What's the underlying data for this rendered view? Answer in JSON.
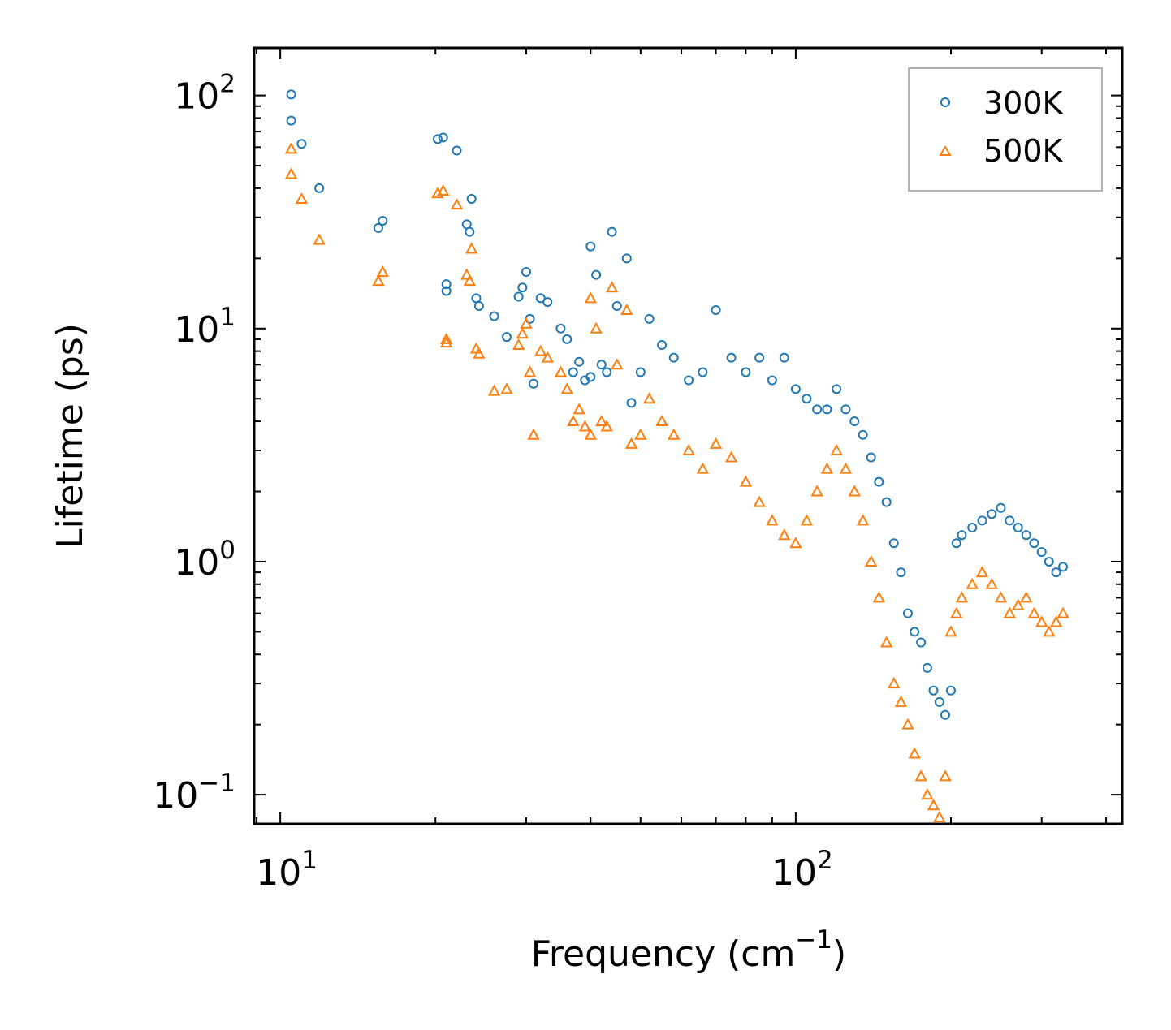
{
  "chart_data": {
    "type": "scatter",
    "title": "",
    "xlabel": "Frequency (cm",
    "xlabel_sup": "−1",
    "xlabel_close": ")",
    "ylabel": "Lifetime (ps)",
    "xscale": "log",
    "yscale": "log",
    "xlim": [
      8.9,
      430
    ],
    "ylim": [
      0.075,
      160
    ],
    "x_ticks": [
      {
        "value": 10,
        "base": "10",
        "exp": "1"
      },
      {
        "value": 100,
        "base": "10",
        "exp": "2"
      }
    ],
    "y_ticks": [
      {
        "value": 0.1,
        "base": "10",
        "exp": "−1"
      },
      {
        "value": 1,
        "base": "10",
        "exp": "0"
      },
      {
        "value": 10,
        "base": "10",
        "exp": "1"
      },
      {
        "value": 100,
        "base": "10",
        "exp": "2"
      }
    ],
    "legend_position": "upper-right",
    "series": [
      {
        "name": "300K",
        "marker": "circle",
        "color": "#1f77b4",
        "x": [
          10.5,
          10.5,
          11.0,
          11.9,
          15.5,
          15.8,
          20.2,
          20.7,
          21.0,
          21.0,
          22.0,
          23.0,
          23.3,
          23.5,
          24.0,
          24.3,
          26.0,
          27.5,
          29.0,
          29.5,
          30.0,
          30.5,
          31.0,
          32.0,
          33.0,
          35.0,
          36.0,
          37.0,
          38.0,
          39.0,
          40.0,
          40.0,
          41.0,
          42.0,
          43.0,
          44.0,
          45.0,
          47.0,
          48.0,
          50.0,
          52.0,
          55.0,
          58.0,
          62.0,
          66.0,
          70.0,
          75.0,
          80.0,
          85.0,
          90.0,
          95.0,
          100.0,
          105.0,
          110.0,
          115.0,
          120.0,
          125.0,
          130.0,
          135.0,
          140.0,
          145.0,
          150.0,
          155.0,
          160.0,
          165.0,
          170.0,
          175.0,
          180.0,
          185.0,
          190.0,
          195.0,
          200.0,
          205.0,
          210.0,
          220.0,
          230.0,
          240.0,
          250.0,
          260.0,
          270.0,
          280.0,
          290.0,
          300.0,
          310.0,
          320.0,
          330.0
        ],
        "y": [
          101,
          78,
          62,
          40,
          27,
          29,
          65,
          66,
          15.5,
          14.5,
          58,
          28,
          26,
          36,
          13.5,
          12.5,
          11.3,
          9.2,
          13.7,
          15,
          17.5,
          11,
          5.8,
          13.5,
          13,
          10,
          9,
          6.5,
          7.2,
          6,
          22.5,
          6.2,
          17,
          7,
          6.5,
          26,
          12.5,
          20,
          4.8,
          6.5,
          11,
          8.5,
          7.5,
          6,
          6.5,
          12,
          7.5,
          6.5,
          7.5,
          6,
          7.5,
          5.5,
          5,
          4.5,
          4.5,
          5.5,
          4.5,
          4,
          3.5,
          2.8,
          2.2,
          1.8,
          1.2,
          0.9,
          0.6,
          0.5,
          0.45,
          0.35,
          0.28,
          0.25,
          0.22,
          0.28,
          1.2,
          1.3,
          1.4,
          1.5,
          1.6,
          1.7,
          1.5,
          1.4,
          1.3,
          1.2,
          1.1,
          1.0,
          0.9,
          0.95
        ]
      },
      {
        "name": "500K",
        "marker": "triangle",
        "color": "#ff7f0e",
        "x": [
          10.5,
          10.5,
          11.0,
          11.9,
          15.5,
          15.8,
          20.2,
          20.7,
          21.0,
          21.0,
          22.0,
          23.0,
          23.3,
          23.5,
          24.0,
          24.3,
          26.0,
          27.5,
          29.0,
          29.5,
          30.0,
          30.5,
          31.0,
          32.0,
          33.0,
          35.0,
          36.0,
          37.0,
          38.0,
          39.0,
          40.0,
          40.0,
          41.0,
          42.0,
          43.0,
          44.0,
          45.0,
          47.0,
          48.0,
          50.0,
          52.0,
          55.0,
          58.0,
          62.0,
          66.0,
          70.0,
          75.0,
          80.0,
          85.0,
          90.0,
          95.0,
          100.0,
          105.0,
          110.0,
          115.0,
          120.0,
          125.0,
          130.0,
          135.0,
          140.0,
          145.0,
          150.0,
          155.0,
          160.0,
          165.0,
          170.0,
          175.0,
          180.0,
          185.0,
          190.0,
          195.0,
          200.0,
          205.0,
          210.0,
          220.0,
          230.0,
          240.0,
          250.0,
          260.0,
          270.0,
          280.0,
          290.0,
          300.0,
          310.0,
          320.0,
          330.0
        ],
        "y": [
          59,
          46,
          36,
          24,
          16,
          17.5,
          38,
          39,
          9,
          8.7,
          34,
          17,
          16,
          22,
          8.2,
          7.8,
          5.4,
          5.5,
          8.5,
          9.5,
          10.5,
          6.5,
          3.5,
          8,
          7.5,
          6.5,
          5.5,
          4,
          4.5,
          3.8,
          13.5,
          3.5,
          10,
          4,
          3.8,
          15,
          7,
          12,
          3.2,
          3.5,
          5,
          4,
          3.5,
          3,
          2.5,
          3.2,
          2.8,
          2.2,
          1.8,
          1.5,
          1.3,
          1.2,
          1.5,
          2,
          2.5,
          3,
          2.5,
          2,
          1.5,
          1,
          0.7,
          0.45,
          0.3,
          0.25,
          0.2,
          0.15,
          0.12,
          0.1,
          0.09,
          0.08,
          0.12,
          0.5,
          0.6,
          0.7,
          0.8,
          0.9,
          0.8,
          0.7,
          0.6,
          0.65,
          0.7,
          0.6,
          0.55,
          0.5,
          0.55,
          0.6
        ]
      }
    ]
  }
}
